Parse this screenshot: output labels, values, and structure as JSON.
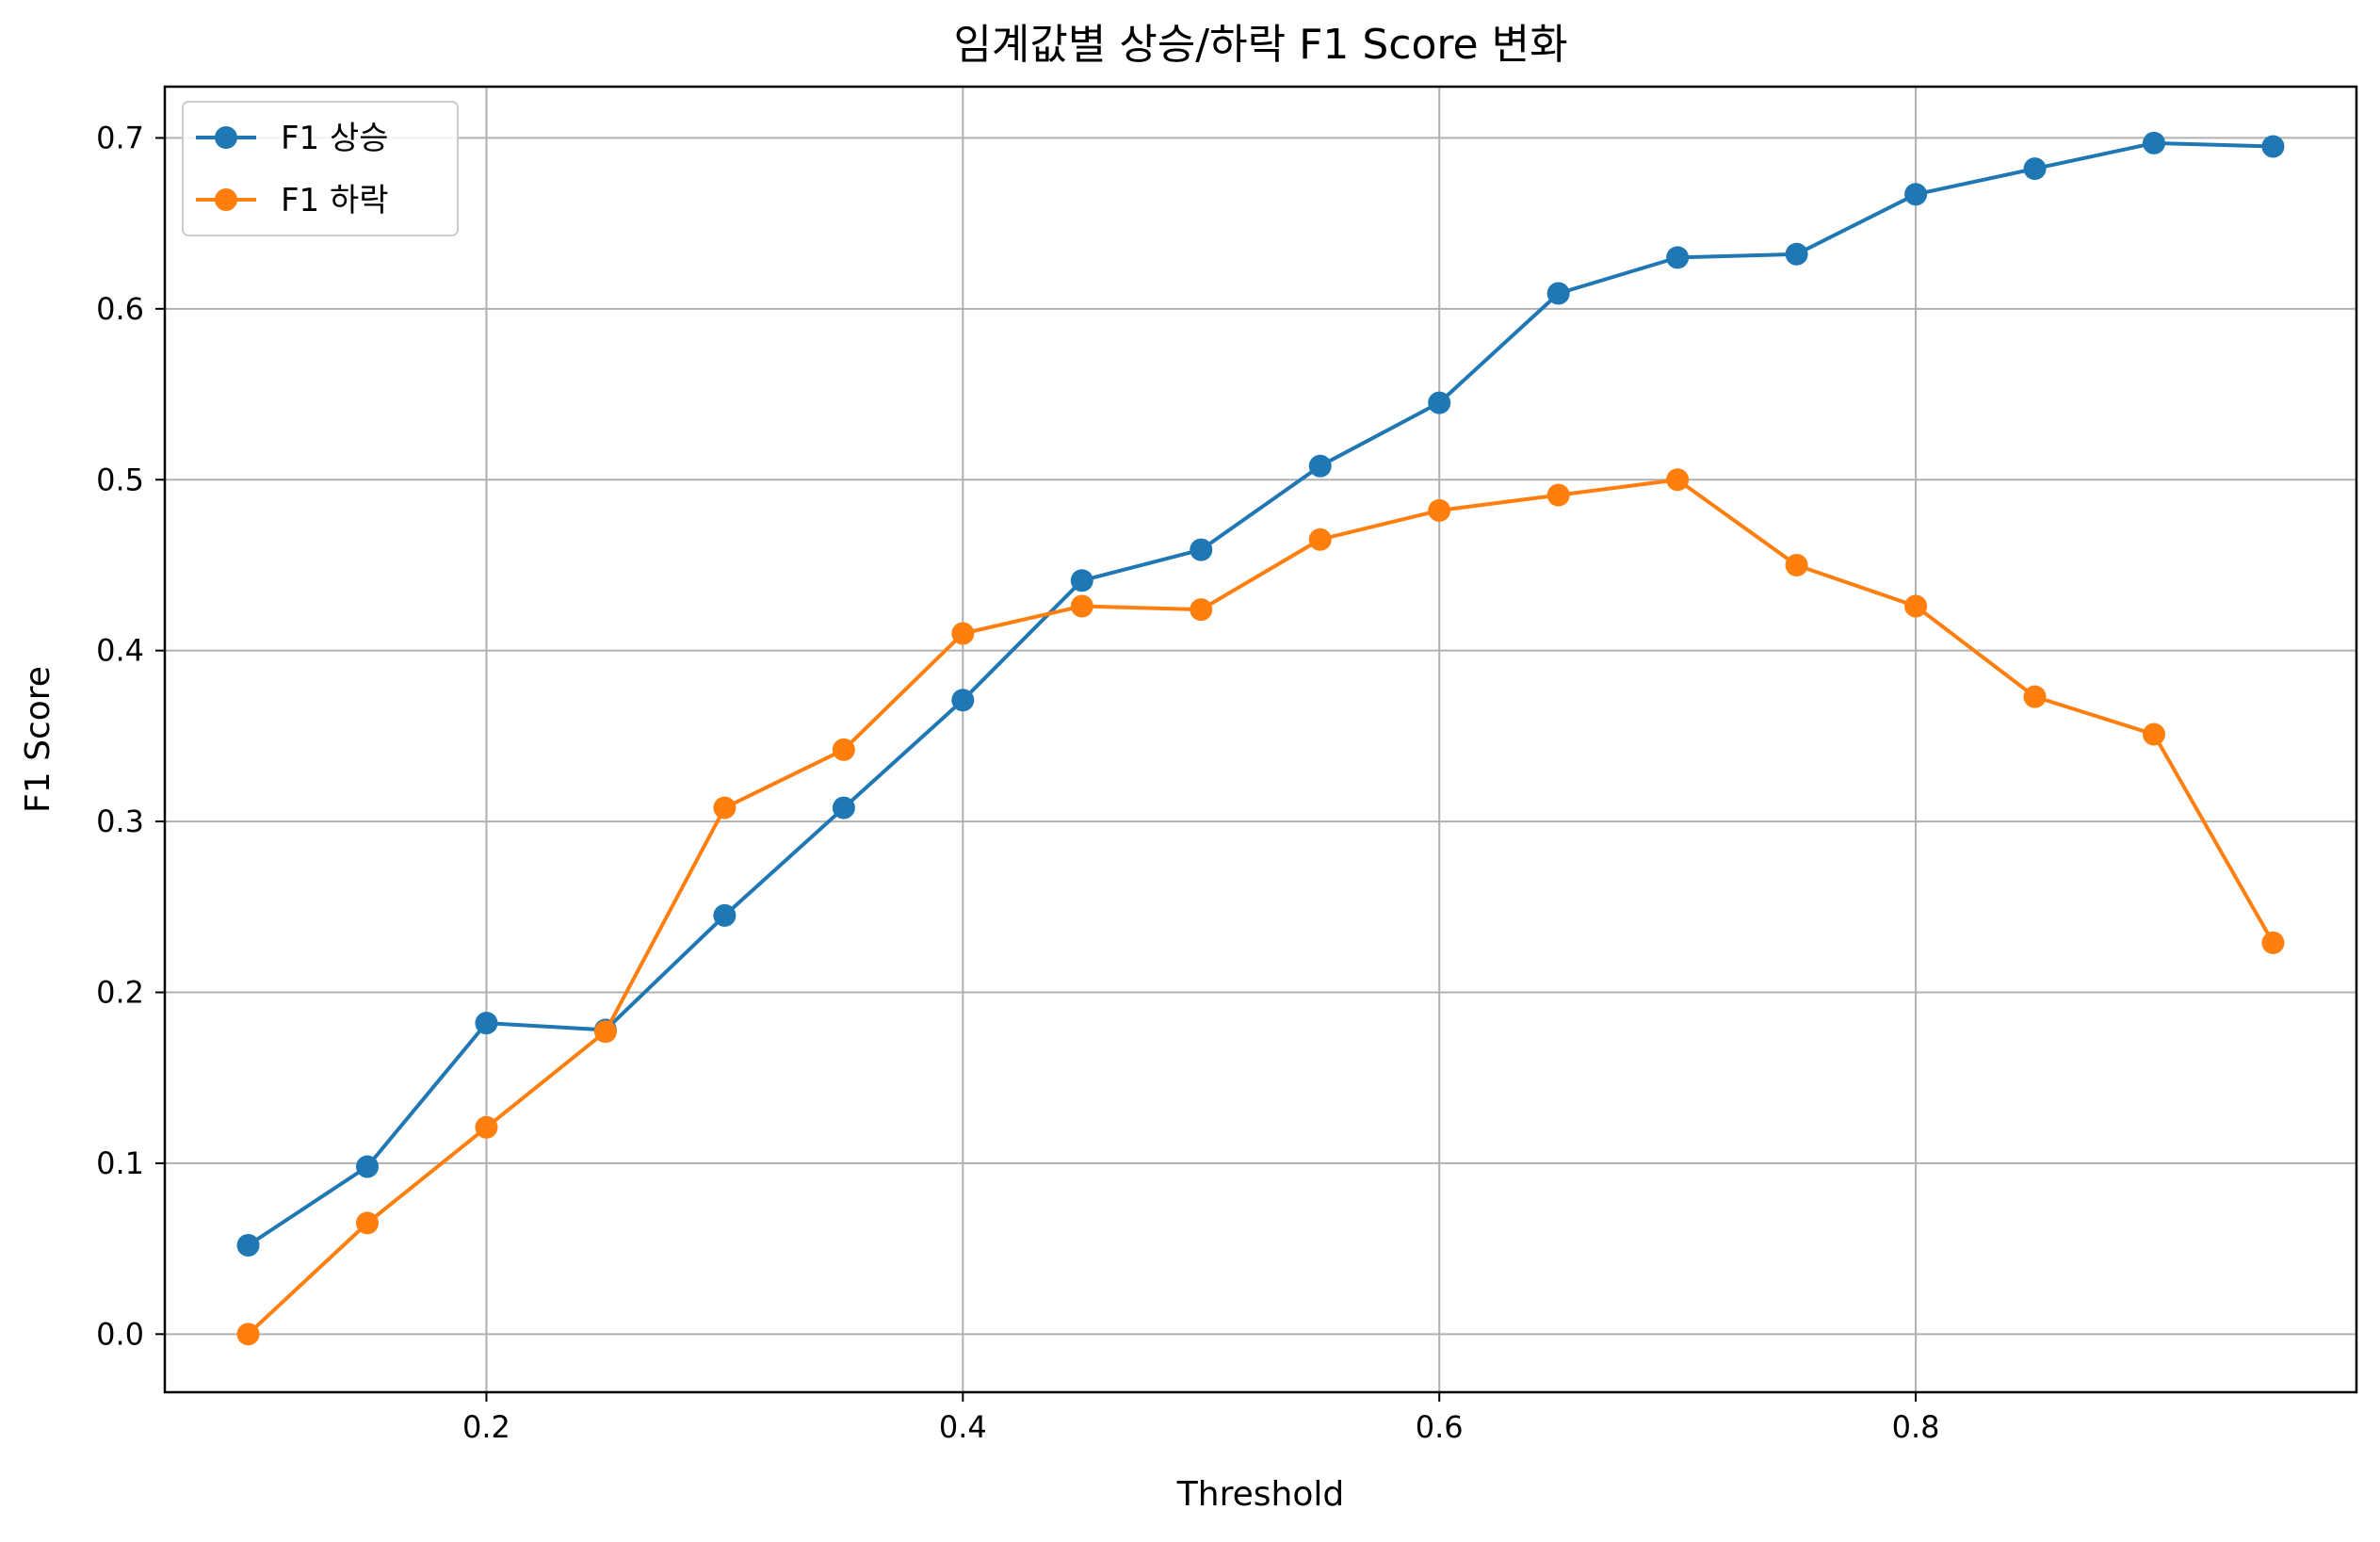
{
  "chart_data": {
    "type": "line",
    "title": "임계값별 상승/하락 F1 Score 변화",
    "xlabel": "Threshold",
    "ylabel": "F1 Score",
    "xlim": [
      0.065,
      0.985
    ],
    "ylim": [
      -0.034,
      0.73
    ],
    "xticks": [
      0.2,
      0.4,
      0.6,
      0.8
    ],
    "xtick_labels": [
      "0.2",
      "0.4",
      "0.6",
      "0.8"
    ],
    "yticks": [
      0.0,
      0.1,
      0.2,
      0.3,
      0.4,
      0.5,
      0.6,
      0.7
    ],
    "ytick_labels": [
      "0.0",
      "0.1",
      "0.2",
      "0.3",
      "0.4",
      "0.5",
      "0.6",
      "0.7"
    ],
    "grid": true,
    "legend_position": "upper-left",
    "x": [
      0.1,
      0.15,
      0.2,
      0.25,
      0.3,
      0.35,
      0.4,
      0.45,
      0.5,
      0.55,
      0.6,
      0.65,
      0.7,
      0.75,
      0.8,
      0.85,
      0.9,
      0.95
    ],
    "series": [
      {
        "name": "F1 상승",
        "color": "#1f77b4",
        "values": [
          0.052,
          0.098,
          0.182,
          0.178,
          0.245,
          0.308,
          0.371,
          0.441,
          0.459,
          0.508,
          0.545,
          0.609,
          0.63,
          0.632,
          0.667,
          0.682,
          0.697,
          0.695
        ]
      },
      {
        "name": "F1 하락",
        "color": "#ff7f0e",
        "values": [
          0.0,
          0.065,
          0.121,
          0.177,
          0.308,
          0.342,
          0.41,
          0.426,
          0.424,
          0.465,
          0.482,
          0.491,
          0.5,
          0.45,
          0.426,
          0.373,
          0.351,
          0.229
        ]
      }
    ]
  }
}
